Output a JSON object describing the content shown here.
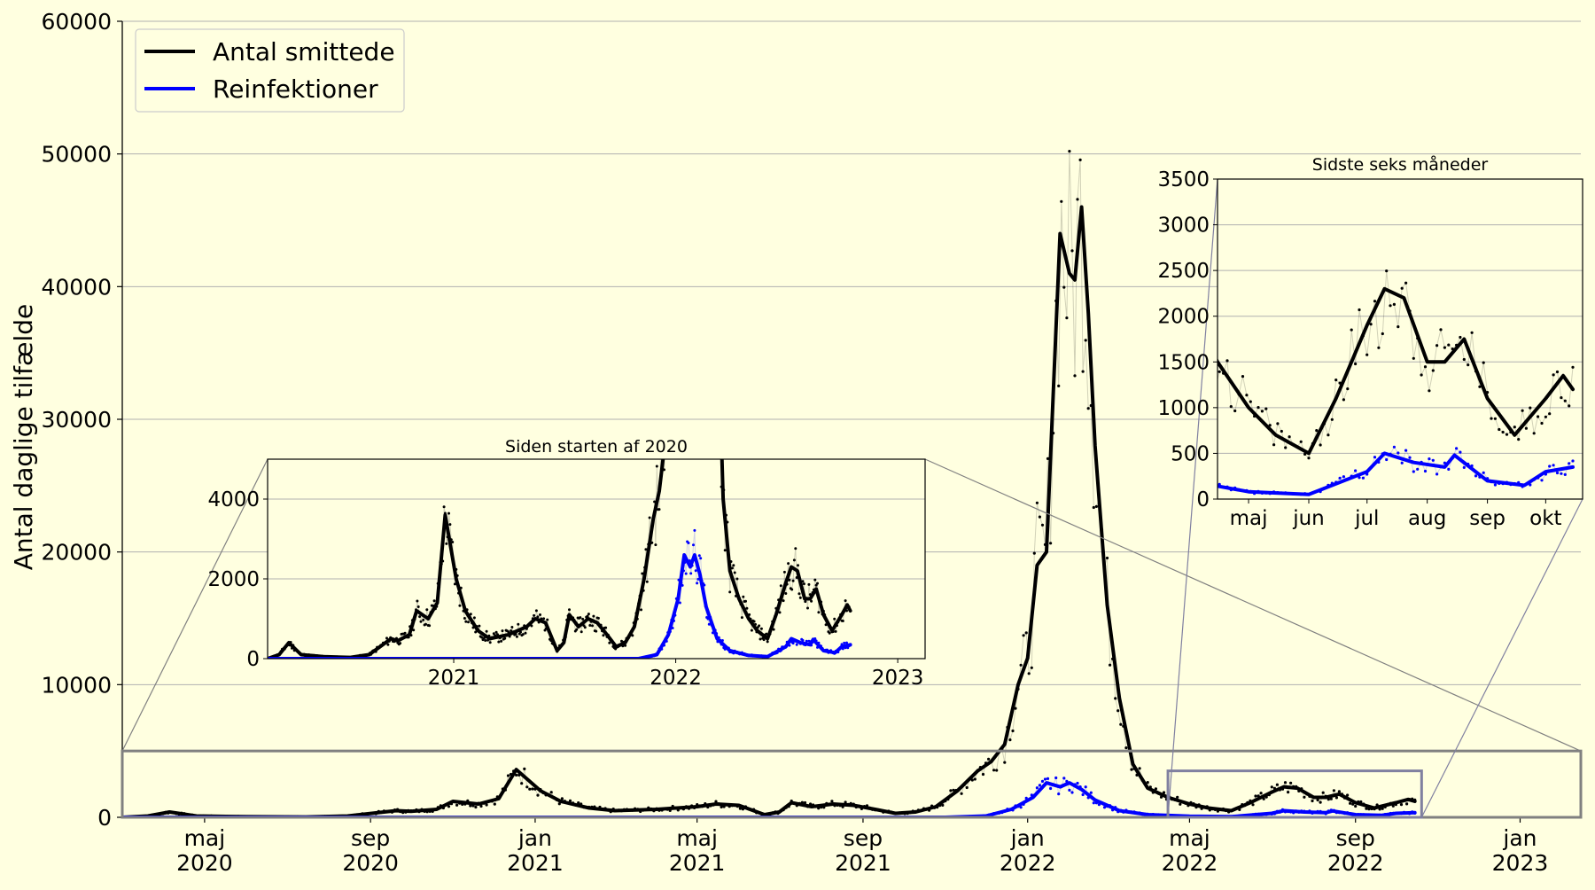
{
  "chart_data": [
    {
      "type": "line",
      "title": "",
      "xlabel": "",
      "ylabel": "Antal daglige tilfælde",
      "ylim": [
        0,
        60000
      ],
      "yticks": [
        0,
        10000,
        20000,
        30000,
        40000,
        50000,
        60000
      ],
      "xlim": [
        "2020-03-01",
        "2023-02-15"
      ],
      "xticks": [
        {
          "date": "2020-05-01",
          "label": [
            "maj",
            "2020"
          ]
        },
        {
          "date": "2020-09-01",
          "label": [
            "sep",
            "2020"
          ]
        },
        {
          "date": "2021-01-01",
          "label": [
            "jan",
            "2021"
          ]
        },
        {
          "date": "2021-05-01",
          "label": [
            "maj",
            "2021"
          ]
        },
        {
          "date": "2021-09-01",
          "label": [
            "sep",
            "2021"
          ]
        },
        {
          "date": "2022-01-01",
          "label": [
            "jan",
            "2022"
          ]
        },
        {
          "date": "2022-05-01",
          "label": [
            "maj",
            "2022"
          ]
        },
        {
          "date": "2022-09-01",
          "label": [
            "sep",
            "2022"
          ]
        },
        {
          "date": "2023-01-01",
          "label": [
            "jan",
            "2023"
          ]
        }
      ],
      "grid": "horizontal",
      "legend": {
        "position": "top-left",
        "entries": [
          {
            "label": "Antal smittede",
            "color": "#000000"
          },
          {
            "label": "Reinfektioner",
            "color": "#0000ff"
          }
        ]
      },
      "series": [
        {
          "name": "Antal smittede",
          "color": "#000000",
          "x": [
            "2020-03-01",
            "2020-03-20",
            "2020-04-05",
            "2020-04-25",
            "2020-06-01",
            "2020-07-15",
            "2020-08-15",
            "2020-09-20",
            "2020-10-01",
            "2020-10-20",
            "2020-11-01",
            "2020-11-20",
            "2020-12-05",
            "2020-12-18",
            "2021-01-05",
            "2021-01-20",
            "2021-02-10",
            "2021-03-01",
            "2021-04-01",
            "2021-05-01",
            "2021-05-15",
            "2021-06-01",
            "2021-06-20",
            "2021-07-01",
            "2021-07-10",
            "2021-07-25",
            "2021-08-10",
            "2021-08-25",
            "2021-09-10",
            "2021-09-25",
            "2021-10-10",
            "2021-10-25",
            "2021-11-10",
            "2021-11-25",
            "2021-12-05",
            "2021-12-15",
            "2021-12-25",
            "2022-01-01",
            "2022-01-08",
            "2022-01-15",
            "2022-01-25",
            "2022-02-01",
            "2022-02-05",
            "2022-02-10",
            "2022-02-15",
            "2022-02-20",
            "2022-03-01",
            "2022-03-10",
            "2022-03-20",
            "2022-03-31",
            "2022-04-15",
            "2022-05-01",
            "2022-05-15",
            "2022-06-01",
            "2022-06-15",
            "2022-07-01",
            "2022-07-10",
            "2022-07-20",
            "2022-08-01",
            "2022-08-10",
            "2022-08-20",
            "2022-09-01",
            "2022-09-15",
            "2022-10-01",
            "2022-10-10",
            "2022-10-15"
          ],
          "values": [
            0,
            100,
            400,
            100,
            50,
            30,
            100,
            500,
            450,
            600,
            1200,
            1000,
            1400,
            3600,
            2000,
            1200,
            700,
            500,
            600,
            800,
            1000,
            900,
            200,
            400,
            1100,
            800,
            1000,
            900,
            600,
            300,
            400,
            800,
            2000,
            3500,
            4200,
            5500,
            10000,
            12000,
            19000,
            20000,
            44000,
            41000,
            40500,
            46000,
            38000,
            28000,
            16000,
            9000,
            4000,
            2200,
            1500,
            1000,
            700,
            500,
            1100,
            1900,
            2300,
            2200,
            1500,
            1500,
            1750,
            1100,
            700,
            1100,
            1350,
            1200
          ]
        },
        {
          "name": "Reinfektioner",
          "color": "#0000ff",
          "x": [
            "2020-03-01",
            "2021-11-01",
            "2021-12-01",
            "2021-12-20",
            "2022-01-05",
            "2022-01-15",
            "2022-01-25",
            "2022-02-01",
            "2022-02-10",
            "2022-02-20",
            "2022-03-10",
            "2022-03-31",
            "2022-05-01",
            "2022-06-01",
            "2022-07-01",
            "2022-07-10",
            "2022-07-25",
            "2022-08-10",
            "2022-08-15",
            "2022-09-01",
            "2022-09-20",
            "2022-10-01",
            "2022-10-15"
          ],
          "values": [
            0,
            0,
            100,
            600,
            1500,
            2600,
            2300,
            2600,
            2100,
            1300,
            500,
            200,
            80,
            50,
            300,
            500,
            400,
            350,
            480,
            200,
            150,
            300,
            350
          ]
        }
      ]
    },
    {
      "type": "line",
      "title": "Siden starten af 2020",
      "ylim": [
        0,
        5000
      ],
      "yticks": [
        0,
        2000,
        4000
      ],
      "xlim": [
        "2020-03-01",
        "2023-02-15"
      ],
      "xticks": [
        {
          "date": "2021-01-01",
          "label": "2021"
        },
        {
          "date": "2022-01-01",
          "label": "2022"
        },
        {
          "date": "2023-01-01",
          "label": "2023"
        }
      ],
      "grid": "horizontal"
    },
    {
      "type": "line",
      "title": "Sidste seks måneder",
      "ylim": [
        0,
        3500
      ],
      "yticks": [
        0,
        500,
        1000,
        1500,
        2000,
        2500,
        3000,
        3500
      ],
      "xlim": [
        "2022-04-15",
        "2022-10-20"
      ],
      "xticks": [
        {
          "date": "2022-05-01",
          "label": "maj"
        },
        {
          "date": "2022-06-01",
          "label": "jun"
        },
        {
          "date": "2022-07-01",
          "label": "jul"
        },
        {
          "date": "2022-08-01",
          "label": "aug"
        },
        {
          "date": "2022-09-01",
          "label": "sep"
        },
        {
          "date": "2022-10-01",
          "label": "okt"
        }
      ],
      "grid": "horizontal"
    }
  ],
  "colors": {
    "background": "#ffffe0",
    "grid": "#b0b0b0",
    "connector": "#808080",
    "zoom_box": "#8080a0"
  }
}
